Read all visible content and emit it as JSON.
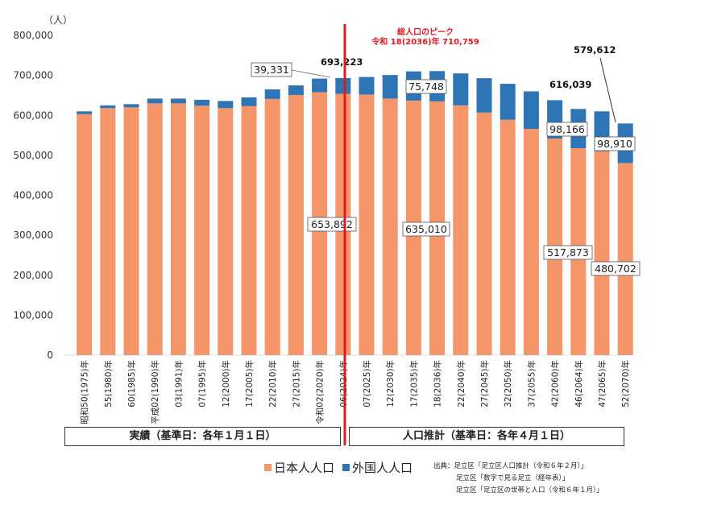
{
  "chart_data": {
    "type": "bar",
    "stacked": true,
    "unit_label": "（人）",
    "yticks": [
      "800,000",
      "700,000",
      "600,000",
      "500,000",
      "400,000",
      "300,000",
      "200,000",
      "100,000",
      "0"
    ],
    "ylim": [
      0,
      800000
    ],
    "categories": [
      "昭和50(1975)年",
      "55(1980)年",
      "60(1985)年",
      "平成02(1990)年",
      "03(1991)年",
      "07(1995)年",
      "12(2000)年",
      "17(2005)年",
      "22(2010)年",
      "27(2015)年",
      "令和02(2020)年",
      "06(2024)年",
      "07(2025)年",
      "12(2030)年",
      "17(2035)年",
      "18(2036)年",
      "22(2040)年",
      "27(2045)年",
      "32(2050)年",
      "37(2055)年",
      "42(2060)年",
      "46(2064)年",
      "47(2065)年",
      "52(2070)年"
    ],
    "series": [
      {
        "name": "日本人人口",
        "color": "#f4956a",
        "values": [
          603000,
          618000,
          620000,
          630000,
          630000,
          624000,
          618000,
          623000,
          641000,
          651000,
          658000,
          653892,
          652000,
          642000,
          637000,
          635010,
          625000,
          607000,
          589000,
          566000,
          542000,
          517873,
          510000,
          480702
        ]
      },
      {
        "name": "外国人人口",
        "color": "#2e75b6",
        "values": [
          7000,
          7000,
          8000,
          12000,
          12000,
          15000,
          18000,
          22000,
          24000,
          24000,
          34000,
          39331,
          44000,
          59000,
          73000,
          75748,
          80000,
          86000,
          90000,
          94000,
          96000,
          98166,
          100000,
          98910
        ]
      }
    ],
    "annotations": {
      "peak_title": "総人口のピーク",
      "peak_value": "令和 18(2036)年 710,759",
      "total_2024": "693,223",
      "total_2064": "616,039",
      "total_2070": "579,612",
      "boxed_labels": [
        "39,331",
        "653,892",
        "75,748",
        "635,010",
        "98,166",
        "517,873",
        "98,910",
        "480,702"
      ]
    },
    "periods": {
      "actual": "実績（基準日：各年１月１日）",
      "projection": "人口推計（基準日：各年４月１日）"
    },
    "legend": [
      "日本人人口",
      "外国人人口"
    ]
  },
  "sources": {
    "line1": "出典：足立区「足立区人口推計（令和６年２月）」",
    "line2": "足立区「数字で見る足立（経年表）」",
    "line3": "足立区「足立区の世帯と人口（令和６年１月）」"
  }
}
